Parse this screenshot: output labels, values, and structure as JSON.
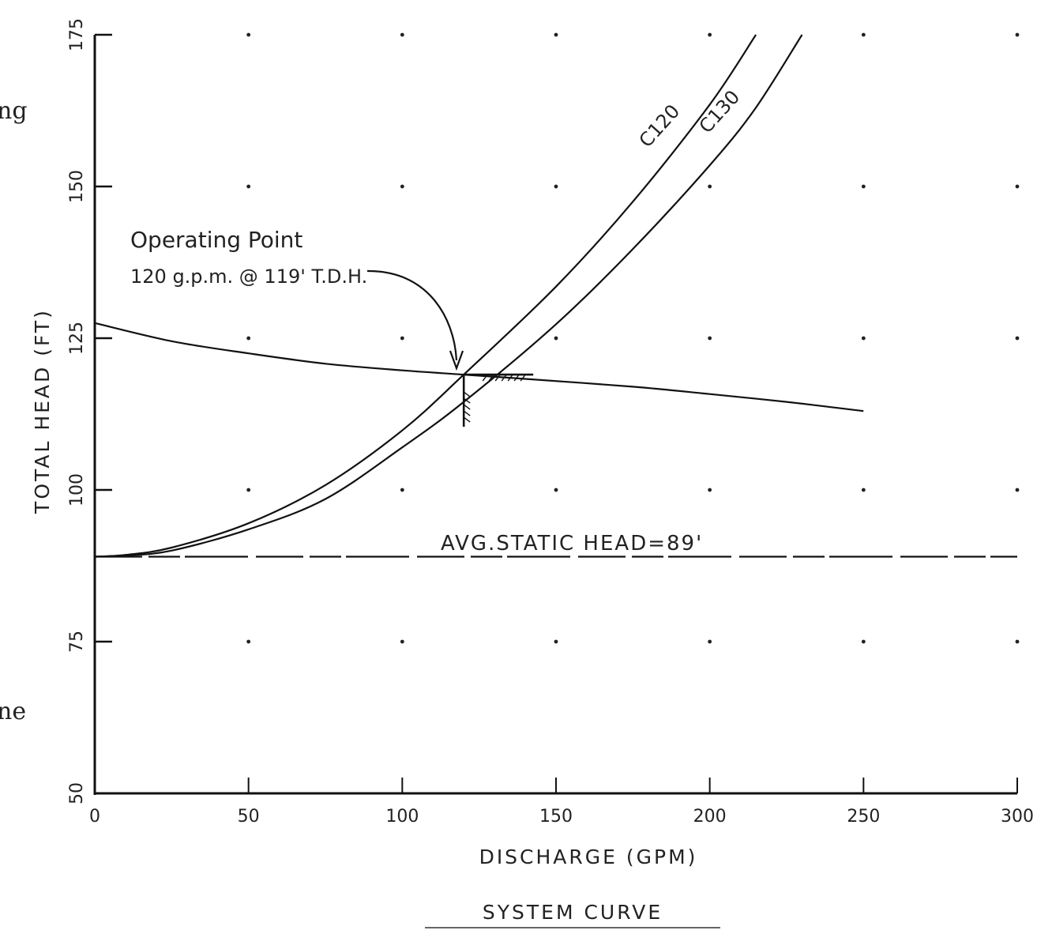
{
  "chart_data": {
    "type": "line",
    "title": "SYSTEM CURVE",
    "xlabel": "DISCHARGE (GPM)",
    "ylabel": "TOTAL HEAD (FT)",
    "xlim": [
      0,
      300
    ],
    "ylim": [
      50,
      175
    ],
    "x_ticks": [
      0,
      50,
      100,
      150,
      200,
      250,
      300
    ],
    "y_ticks": [
      50,
      75,
      100,
      125,
      150,
      175
    ],
    "x_tick_labels": [
      "0",
      "50",
      "100",
      "150",
      "200",
      "250",
      "300"
    ],
    "y_tick_labels": [
      "50",
      "75",
      "100",
      "125",
      "150",
      "175"
    ],
    "grid": "dots",
    "series": [
      {
        "name": "C120",
        "x": [
          0,
          10,
          25,
          50,
          75,
          100,
          120,
          150,
          175,
          200,
          215
        ],
        "y": [
          89,
          89.3,
          90.5,
          94.5,
          100.8,
          109.8,
          119,
          133.5,
          147.5,
          163.5,
          175
        ]
      },
      {
        "name": "C130",
        "x": [
          0,
          10,
          25,
          50,
          75,
          100,
          120,
          150,
          175,
          200,
          215,
          230
        ],
        "y": [
          89,
          89.2,
          90,
          93.5,
          98.5,
          107,
          114.5,
          127.3,
          139.7,
          153.5,
          163,
          175
        ]
      },
      {
        "name": "",
        "x": [
          0,
          25,
          50,
          75,
          100,
          120,
          140,
          175,
          200,
          225,
          250
        ],
        "y": [
          127.5,
          124.5,
          122.5,
          120.8,
          119.7,
          119,
          118.3,
          117,
          115.8,
          114.5,
          113
        ]
      }
    ],
    "static_head": {
      "label": "AVG.STATIC HEAD=89'",
      "y": 89
    },
    "operating_point": {
      "x": 120,
      "y": 119,
      "label_line1": "Operating Point",
      "label_line2": "120 g.p.m. @ 119' T.D.H."
    },
    "edge_fragments": [
      "ng",
      "ne"
    ]
  }
}
